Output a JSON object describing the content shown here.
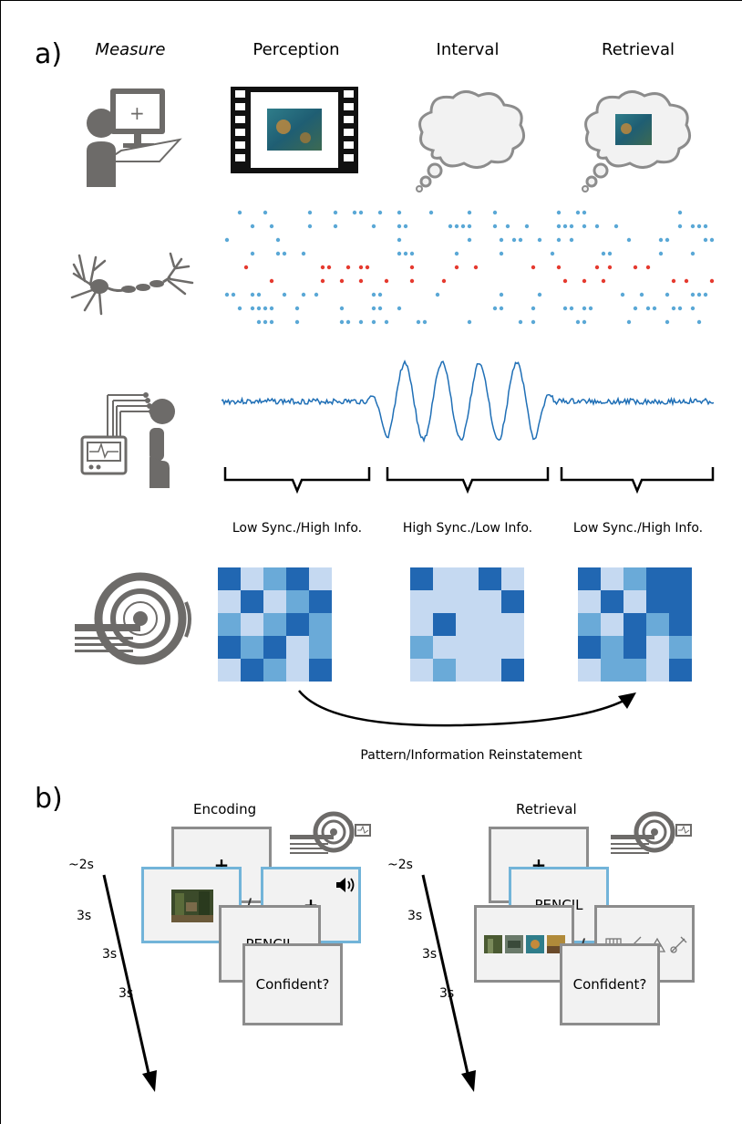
{
  "panel_a": {
    "label": "a)",
    "columns": {
      "measure": "Measure",
      "perception": "Perception",
      "interval": "Interval",
      "retrieval": "Retrieval"
    },
    "sync_labels": [
      "Low Sync./High Info.",
      "High Sync./Low Info.",
      "Low Sync./High Info."
    ],
    "reinstatement": "Pattern/Information Reinstatement",
    "colors": {
      "spike_blue": "#5aa8d6",
      "spike_red": "#e53a2f",
      "trace": "#1f6fb6",
      "icon_gray": "#6d6b69"
    },
    "matrices": {
      "palette": [
        "#c5d9f1",
        "#6aaad8",
        "#2167b2"
      ],
      "perception": [
        [
          2,
          0,
          1,
          2,
          0
        ],
        [
          0,
          2,
          0,
          1,
          2
        ],
        [
          1,
          0,
          1,
          2,
          1
        ],
        [
          2,
          1,
          2,
          0,
          1
        ],
        [
          0,
          2,
          1,
          0,
          2
        ]
      ],
      "interval": [
        [
          2,
          0,
          0,
          2,
          0
        ],
        [
          0,
          0,
          0,
          0,
          2
        ],
        [
          0,
          2,
          0,
          0,
          0
        ],
        [
          1,
          0,
          0,
          0,
          0
        ],
        [
          0,
          1,
          0,
          0,
          2
        ]
      ],
      "retrieval": [
        [
          2,
          0,
          1,
          2,
          2
        ],
        [
          0,
          2,
          0,
          2,
          2
        ],
        [
          1,
          0,
          2,
          1,
          2
        ],
        [
          2,
          1,
          2,
          0,
          1
        ],
        [
          0,
          1,
          1,
          0,
          2
        ]
      ]
    }
  },
  "panel_b": {
    "label": "b)",
    "encoding": {
      "title": "Encoding",
      "cross": "+",
      "divider": "/",
      "word": "PENCIL",
      "question": "Confident?",
      "durations": [
        "~2s",
        "3s",
        "3s",
        "3s"
      ]
    },
    "retrieval": {
      "title": "Retrieval",
      "cross": "+",
      "word": "PENCIL",
      "divider": "/",
      "question": "Confident?",
      "durations": [
        "~2s",
        "3s",
        "3s",
        "3s"
      ]
    }
  }
}
